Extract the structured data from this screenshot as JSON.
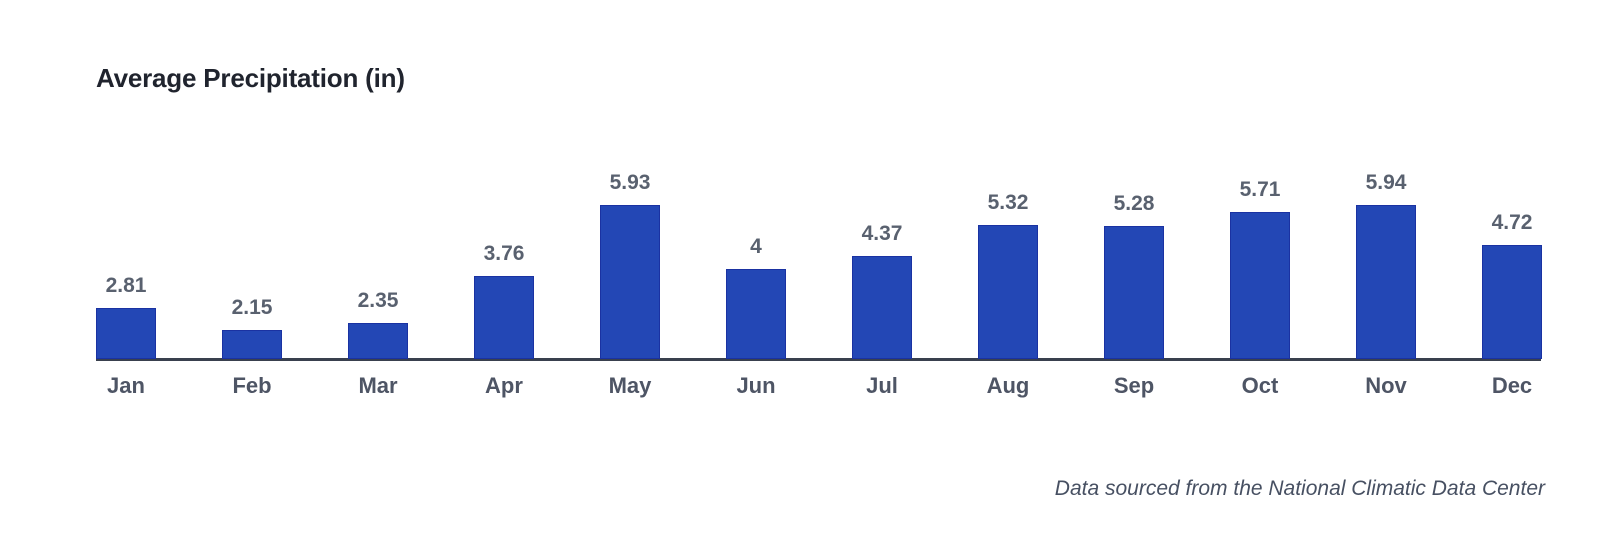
{
  "header": {
    "title": "Average Precipitation (in)"
  },
  "chart_data": {
    "type": "bar",
    "title": "Average Precipitation (in)",
    "categories": [
      "Jan",
      "Feb",
      "Mar",
      "Apr",
      "May",
      "Jun",
      "Jul",
      "Aug",
      "Sep",
      "Oct",
      "Nov",
      "Dec"
    ],
    "values": [
      2.81,
      2.15,
      2.35,
      3.76,
      5.93,
      4,
      4.37,
      5.32,
      5.28,
      5.71,
      5.94,
      4.72
    ],
    "xlabel": "",
    "ylabel": "",
    "data_labels_shown": true,
    "value_axis_hidden": true,
    "gridlines": false,
    "legend_position": "none",
    "y_baseline_value_approx": 1.26,
    "colors": {
      "bar_fill": "#2347b5",
      "bar_stroke": "#1a32a2",
      "axis_line": "#39404e",
      "title_text": "#20242e",
      "value_label_text": "#59616f",
      "tick_label_text": "#4e5565",
      "source_text": "#475062"
    }
  },
  "footer": {
    "source_note": "Data sourced from the National Climatic Data Center"
  }
}
